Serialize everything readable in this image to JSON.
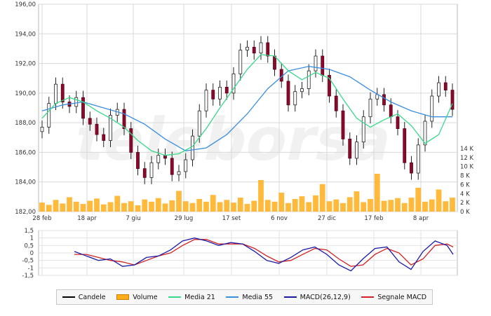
{
  "watermark": "teleborsa",
  "legend": [
    {
      "key": "candele",
      "label": "Candele",
      "color": "#000000",
      "kind": "line"
    },
    {
      "key": "volume",
      "label": "Volume",
      "color": "#ffae1a",
      "kind": "box"
    },
    {
      "key": "media21",
      "label": "Media 21",
      "color": "#36d98a",
      "kind": "line"
    },
    {
      "key": "media55",
      "label": "Media 55",
      "color": "#3a8ee0",
      "kind": "line"
    },
    {
      "key": "macd",
      "label": "MACD(26,12,9)",
      "color": "#1a1aa8",
      "kind": "line"
    },
    {
      "key": "signal",
      "label": "Segnale MACD",
      "color": "#d42020",
      "kind": "line"
    }
  ],
  "chart_data": [
    {
      "type": "candlestick",
      "price_axis": {
        "ticks": [
          "196,00",
          "194,00",
          "192,00",
          "190,00",
          "188,00",
          "186,00",
          "184,00",
          "182,00"
        ],
        "range": [
          182,
          196
        ]
      },
      "volume_axis": {
        "ticks": [
          "14 K",
          "12 K",
          "10 K",
          "8 K",
          "6 K",
          "4 K",
          "2 K",
          "0 K"
        ],
        "range": [
          0,
          14000
        ]
      },
      "x_ticks": [
        "28 feb",
        "18 apr",
        "7 giu",
        "29 lug",
        "17 set",
        "6 nov",
        "27 dic",
        "17 feb",
        "8 apr"
      ],
      "close_series": [
        [
          0,
          187.7
        ],
        [
          1,
          189.3
        ],
        [
          2,
          190.6
        ],
        [
          3,
          189.4
        ],
        [
          4,
          189.1
        ],
        [
          5,
          189.7
        ],
        [
          6,
          188.3
        ],
        [
          7,
          187.9
        ],
        [
          8,
          187.2
        ],
        [
          9,
          186.8
        ],
        [
          10,
          188.5
        ],
        [
          11,
          188.9
        ],
        [
          12,
          187.6
        ],
        [
          13,
          186.0
        ],
        [
          14,
          184.9
        ],
        [
          15,
          184.3
        ],
        [
          16,
          185.3
        ],
        [
          17,
          185.8
        ],
        [
          18,
          185.6
        ],
        [
          19,
          184.5
        ],
        [
          20,
          184.7
        ],
        [
          21,
          185.5
        ],
        [
          22,
          187.1
        ],
        [
          23,
          188.8
        ],
        [
          24,
          190.2
        ],
        [
          25,
          189.6
        ],
        [
          26,
          190.4
        ],
        [
          27,
          190.0
        ],
        [
          28,
          191.3
        ],
        [
          29,
          192.9
        ],
        [
          30,
          193.1
        ],
        [
          31,
          192.7
        ],
        [
          32,
          193.4
        ],
        [
          33,
          192.5
        ],
        [
          34,
          191.6
        ],
        [
          35,
          190.8
        ],
        [
          36,
          189.2
        ],
        [
          37,
          190.1
        ],
        [
          38,
          190.3
        ],
        [
          39,
          191.5
        ],
        [
          40,
          192.5
        ],
        [
          41,
          191.2
        ],
        [
          42,
          189.8
        ],
        [
          43,
          188.8
        ],
        [
          44,
          186.9
        ],
        [
          45,
          185.6
        ],
        [
          46,
          186.7
        ],
        [
          47,
          188.4
        ],
        [
          48,
          189.6
        ],
        [
          49,
          189.9
        ],
        [
          50,
          189.2
        ],
        [
          51,
          188.4
        ],
        [
          52,
          187.6
        ],
        [
          53,
          185.3
        ],
        [
          54,
          184.6
        ],
        [
          55,
          186.5
        ],
        [
          56,
          188.1
        ],
        [
          57,
          189.8
        ],
        [
          58,
          190.7
        ],
        [
          59,
          190.2
        ],
        [
          60,
          188.9
        ]
      ],
      "media21_series": [
        [
          0,
          188.3
        ],
        [
          2,
          189.3
        ],
        [
          4,
          189.7
        ],
        [
          6,
          189.4
        ],
        [
          8,
          188.8
        ],
        [
          10,
          188.3
        ],
        [
          12,
          187.7
        ],
        [
          14,
          186.8
        ],
        [
          16,
          186.1
        ],
        [
          18,
          185.8
        ],
        [
          20,
          185.9
        ],
        [
          22,
          186.4
        ],
        [
          24,
          187.6
        ],
        [
          26,
          189.0
        ],
        [
          28,
          190.3
        ],
        [
          30,
          191.6
        ],
        [
          32,
          192.6
        ],
        [
          34,
          192.5
        ],
        [
          36,
          191.5
        ],
        [
          38,
          190.9
        ],
        [
          40,
          191.4
        ],
        [
          42,
          191.0
        ],
        [
          44,
          189.6
        ],
        [
          46,
          188.3
        ],
        [
          48,
          187.7
        ],
        [
          50,
          188.2
        ],
        [
          52,
          188.6
        ],
        [
          54,
          187.8
        ],
        [
          56,
          186.6
        ],
        [
          58,
          187.2
        ],
        [
          60,
          189.3
        ]
      ],
      "media55_series": [
        [
          0,
          188.8
        ],
        [
          3,
          189.2
        ],
        [
          6,
          189.4
        ],
        [
          9,
          189.0
        ],
        [
          12,
          188.6
        ],
        [
          15,
          187.9
        ],
        [
          18,
          186.9
        ],
        [
          21,
          186.1
        ],
        [
          24,
          186.3
        ],
        [
          27,
          187.2
        ],
        [
          30,
          188.6
        ],
        [
          33,
          190.3
        ],
        [
          36,
          191.5
        ],
        [
          39,
          191.8
        ],
        [
          42,
          191.6
        ],
        [
          45,
          191.1
        ],
        [
          48,
          190.2
        ],
        [
          51,
          189.4
        ],
        [
          54,
          188.8
        ],
        [
          57,
          188.4
        ],
        [
          60,
          188.4
        ]
      ],
      "volume": [
        2000,
        1500,
        2600,
        1800,
        3200,
        2200,
        1700,
        2400,
        2900,
        1600,
        2100,
        3500,
        1900,
        2300,
        1400,
        2700,
        2200,
        3000,
        1800,
        2500,
        4600,
        2300,
        1900,
        2800,
        2200,
        3700,
        2100,
        2600,
        2000,
        3100,
        1700,
        2400,
        7000,
        2600,
        2200,
        4200,
        1900,
        2800,
        3400,
        2100,
        3600,
        6100,
        2300,
        2700,
        1900,
        3200,
        4500,
        2100,
        2800,
        8400,
        2400,
        2600,
        3000,
        1900,
        3100,
        5300,
        2200,
        2700,
        4900,
        2300,
        3100
      ]
    },
    {
      "type": "line",
      "y_axis": {
        "ticks": [
          "1,5",
          "1",
          "0,5",
          "0",
          "-0,5",
          "-1",
          "-1,5"
        ],
        "range": [
          -1.5,
          1.5
        ]
      },
      "series": [
        {
          "name": "MACD(26,12,9)",
          "points": [
            [
              0,
              0.1
            ],
            [
              2,
              -0.2
            ],
            [
              4,
              -0.5
            ],
            [
              6,
              -0.4
            ],
            [
              8,
              -0.9
            ],
            [
              10,
              -0.8
            ],
            [
              12,
              -0.3
            ],
            [
              14,
              -0.2
            ],
            [
              16,
              0.2
            ],
            [
              18,
              0.8
            ],
            [
              20,
              1.0
            ],
            [
              22,
              0.8
            ],
            [
              24,
              0.5
            ],
            [
              26,
              0.7
            ],
            [
              28,
              0.6
            ],
            [
              30,
              0.1
            ],
            [
              32,
              -0.5
            ],
            [
              34,
              -0.7
            ],
            [
              36,
              -0.3
            ],
            [
              38,
              0.2
            ],
            [
              40,
              0.4
            ],
            [
              42,
              -0.1
            ],
            [
              44,
              -0.8
            ],
            [
              46,
              -1.2
            ],
            [
              48,
              -0.4
            ],
            [
              50,
              0.3
            ],
            [
              52,
              0.4
            ],
            [
              54,
              -0.6
            ],
            [
              56,
              -1.1
            ],
            [
              58,
              0.1
            ],
            [
              60,
              0.8
            ],
            [
              62,
              0.5
            ],
            [
              63,
              -0.1
            ]
          ]
        },
        {
          "name": "Segnale MACD",
          "points": [
            [
              0,
              -0.1
            ],
            [
              2,
              -0.1
            ],
            [
              4,
              -0.3
            ],
            [
              6,
              -0.5
            ],
            [
              8,
              -0.6
            ],
            [
              10,
              -0.8
            ],
            [
              12,
              -0.5
            ],
            [
              14,
              -0.2
            ],
            [
              16,
              0.0
            ],
            [
              18,
              0.5
            ],
            [
              20,
              0.9
            ],
            [
              22,
              0.9
            ],
            [
              24,
              0.6
            ],
            [
              26,
              0.6
            ],
            [
              28,
              0.6
            ],
            [
              30,
              0.3
            ],
            [
              32,
              -0.2
            ],
            [
              34,
              -0.6
            ],
            [
              36,
              -0.5
            ],
            [
              38,
              -0.1
            ],
            [
              40,
              0.3
            ],
            [
              42,
              0.2
            ],
            [
              44,
              -0.4
            ],
            [
              46,
              -0.9
            ],
            [
              48,
              -0.8
            ],
            [
              50,
              -0.1
            ],
            [
              52,
              0.3
            ],
            [
              54,
              0.0
            ],
            [
              56,
              -0.8
            ],
            [
              58,
              -0.4
            ],
            [
              60,
              0.5
            ],
            [
              62,
              0.6
            ],
            [
              63,
              0.4
            ]
          ]
        }
      ]
    }
  ]
}
